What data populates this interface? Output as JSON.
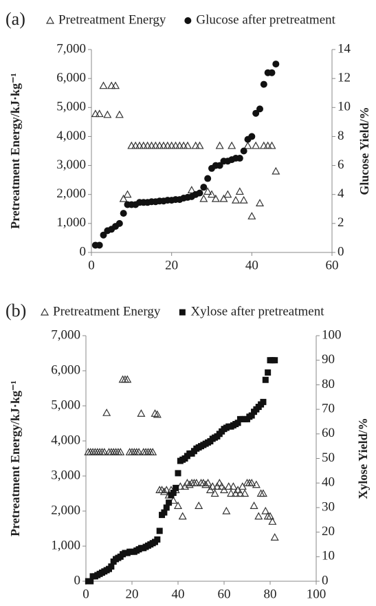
{
  "chart_data": [
    {
      "type": "scatter",
      "panel_label": "(a)",
      "legend": "top",
      "x": [
        1,
        2,
        3,
        4,
        5,
        6,
        7,
        8,
        9,
        10,
        11,
        12,
        13,
        14,
        15,
        16,
        17,
        18,
        19,
        20,
        21,
        22,
        23,
        24,
        25,
        26,
        27,
        28,
        29,
        30,
        31,
        32,
        33,
        34,
        35,
        36,
        37,
        38,
        39,
        40,
        41,
        42,
        43,
        44,
        45,
        46
      ],
      "series": [
        {
          "name": "Pretreatment Energy",
          "color": "#333333",
          "marker": "triangle",
          "values": [
            4780,
            4780,
            5750,
            4750,
            5750,
            5750,
            4750,
            1850,
            2000,
            3680,
            3680,
            3680,
            3680,
            3680,
            3680,
            3680,
            3680,
            3680,
            3680,
            3680,
            3680,
            3680,
            3680,
            3680,
            2150,
            3680,
            3680,
            1850,
            2100,
            2000,
            1850,
            3680,
            1850,
            2000,
            3680,
            1800,
            2100,
            1800,
            3680,
            1250,
            3680,
            1700,
            3680,
            3680,
            3680,
            2800
          ]
        },
        {
          "name": "Glucose after pretreatment",
          "color": "#111111",
          "marker": "circle",
          "axis": "y2",
          "values": [
            0.5,
            0.5,
            1.2,
            1.5,
            1.6,
            1.8,
            2.0,
            2.7,
            3.3,
            3.3,
            3.3,
            3.45,
            3.45,
            3.45,
            3.5,
            3.5,
            3.55,
            3.55,
            3.6,
            3.6,
            3.65,
            3.65,
            3.75,
            3.8,
            3.85,
            4.0,
            4.1,
            4.5,
            5.1,
            5.8,
            6.0,
            6.0,
            6.3,
            6.3,
            6.4,
            6.5,
            6.5,
            7.0,
            7.8,
            8.0,
            9.6,
            9.9,
            11.6,
            12.4,
            12.4,
            13.0
          ]
        }
      ],
      "xlim": [
        0,
        60
      ],
      "xticks": [
        0,
        20,
        40,
        60
      ],
      "ylim": [
        0,
        7000
      ],
      "yticks": [
        0,
        {
          "value": 1000,
          "label": "1,000"
        },
        {
          "value": 2000,
          "label": "2,000"
        },
        {
          "value": 3000,
          "label": "3,000"
        },
        {
          "value": 4000,
          "label": "4,000"
        },
        {
          "value": 5000,
          "label": "5,000"
        },
        {
          "value": 6000,
          "label": "6,000"
        },
        {
          "value": 7000,
          "label": "7,000"
        }
      ],
      "y2lim": [
        0,
        14
      ],
      "y2ticks": [
        0,
        2,
        4,
        6,
        8,
        10,
        12,
        14
      ],
      "ylabel": "Pretreatment Energy/kJ·kg⁻¹",
      "y2label": "Glucose Yield/%"
    },
    {
      "type": "scatter",
      "panel_label": "(b)",
      "legend": "top",
      "x": [
        1,
        2,
        3,
        4,
        5,
        6,
        7,
        8,
        9,
        10,
        11,
        12,
        13,
        14,
        15,
        16,
        17,
        18,
        19,
        20,
        21,
        22,
        23,
        24,
        25,
        26,
        27,
        28,
        29,
        30,
        31,
        32,
        33,
        34,
        35,
        36,
        37,
        38,
        39,
        40,
        41,
        42,
        43,
        44,
        45,
        46,
        47,
        48,
        49,
        50,
        51,
        52,
        53,
        54,
        55,
        56,
        57,
        58,
        59,
        60,
        61,
        62,
        63,
        64,
        65,
        66,
        67,
        68,
        69,
        70,
        71,
        72,
        73,
        74,
        75,
        76,
        77,
        78,
        79,
        80,
        81,
        82
      ],
      "series": [
        {
          "name": "Pretreatment Energy",
          "color": "#333333",
          "marker": "triangle",
          "values": [
            3680,
            3680,
            3680,
            3680,
            3680,
            3680,
            3680,
            3680,
            4800,
            3680,
            3680,
            3680,
            3680,
            3680,
            3680,
            5750,
            5750,
            5750,
            3680,
            3680,
            3680,
            3680,
            3680,
            4780,
            3680,
            3680,
            3680,
            3680,
            3680,
            4780,
            4750,
            2600,
            2600,
            2550,
            2600,
            2450,
            2600,
            2300,
            2600,
            2150,
            2700,
            1850,
            2700,
            2800,
            2750,
            2800,
            2800,
            2800,
            2150,
            2800,
            2800,
            2750,
            2800,
            2600,
            2700,
            2500,
            2700,
            2800,
            2700,
            2600,
            2000,
            2700,
            2500,
            2700,
            2500,
            2600,
            2500,
            2700,
            2500,
            2800,
            2800,
            2800,
            2150,
            2750,
            1850,
            2500,
            2500,
            2000,
            1850,
            1850,
            1700,
            1250
          ]
        },
        {
          "name": "Xylose after pretreatment",
          "color": "#111111",
          "marker": "square",
          "axis": "y2",
          "values": [
            0,
            0,
            2,
            2,
            2.5,
            3,
            3.5,
            4,
            4.5,
            5,
            6,
            8,
            9,
            9.5,
            10,
            11,
            11.5,
            11.5,
            12,
            12,
            12,
            12.5,
            13,
            13.5,
            13.5,
            14,
            14.5,
            15,
            15.5,
            16,
            17,
            20.5,
            27,
            28,
            30,
            32,
            35,
            36,
            38,
            44,
            49,
            49.5,
            50,
            51,
            52,
            52,
            53,
            54,
            54.5,
            55,
            55.5,
            56,
            56.5,
            57,
            58,
            58.5,
            59,
            60,
            61,
            62,
            62.5,
            63,
            63,
            63.5,
            64,
            64.5,
            66,
            66,
            66,
            66,
            67,
            67.5,
            69,
            70,
            71,
            72,
            73,
            82,
            85,
            90,
            90,
            90
          ]
        }
      ],
      "xlim": [
        0,
        100
      ],
      "xticks": [
        0,
        20,
        40,
        60,
        80,
        100
      ],
      "ylim": [
        0,
        7000
      ],
      "yticks": [
        0,
        {
          "value": 1000,
          "label": "1,000"
        },
        {
          "value": 2000,
          "label": "2,000"
        },
        {
          "value": 3000,
          "label": "3,000"
        },
        {
          "value": 4000,
          "label": "4,000"
        },
        {
          "value": 5000,
          "label": "5,000"
        },
        {
          "value": 6000,
          "label": "6,000"
        },
        {
          "value": 7000,
          "label": "7,000"
        }
      ],
      "y2lim": [
        0,
        100
      ],
      "y2ticks": [
        0,
        10,
        20,
        30,
        40,
        50,
        60,
        70,
        80,
        90,
        100
      ],
      "ylabel": "Pretreatment Energy/kJ·kg⁻¹",
      "y2label": "Xylose Yield/%"
    }
  ]
}
